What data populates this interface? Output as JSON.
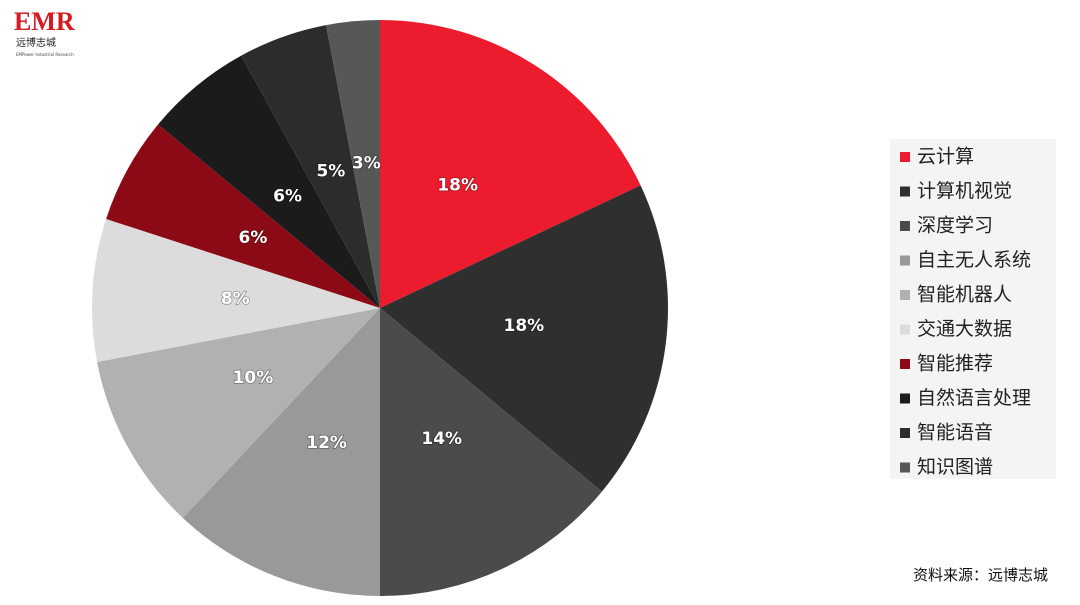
{
  "logo": {
    "mark": "EMR",
    "name": "远博志城",
    "tagline": "EMPower Industrial Research"
  },
  "source": "资料来源：远博志城",
  "chart_data": {
    "type": "pie",
    "categories": [
      "云计算",
      "计算机视觉",
      "深度学习",
      "自主无人系统",
      "智能机器人",
      "交通大数据",
      "智能推荐",
      "自然语言处理",
      "智能语音",
      "知识图谱"
    ],
    "values": [
      18,
      18,
      14,
      12,
      10,
      8,
      6,
      6,
      5,
      3
    ],
    "value_labels": [
      "18%",
      "18%",
      "14%",
      "12%",
      "10%",
      "8%",
      "6%",
      "6%",
      "5%",
      "3%"
    ],
    "colors": [
      "#ec1c2e",
      "#2f2f2f",
      "#4b4b4b",
      "#999999",
      "#b1b1b1",
      "#dcdcdc",
      "#8c0a15",
      "#1b1b1b",
      "#2c2c2c",
      "#575757"
    ],
    "legend": "right"
  }
}
